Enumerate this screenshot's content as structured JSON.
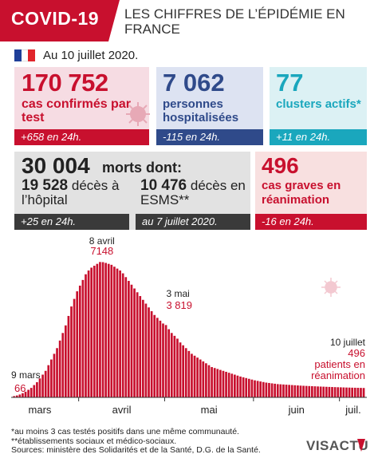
{
  "header": {
    "badge": "COVID-19",
    "title": "LES CHIFFRES DE L’ÉPIDÉMIE EN FRANCE"
  },
  "date_line": "Au 10 juillet 2020.",
  "colors": {
    "red": "#c8102e",
    "navy": "#2f4a8a",
    "teal": "#1aa7bd",
    "dark": "#3a3a3a",
    "flag_blue": "#1f3f99",
    "flag_red": "#e1252b"
  },
  "cards": {
    "confirmed": {
      "value": "170 752",
      "label": "cas confirmés par test",
      "delta": "+658 en 24h."
    },
    "hospitalized": {
      "value": "7 062",
      "label": "personnes hospitalisées",
      "delta": "-115 en 24h."
    },
    "clusters": {
      "value": "77",
      "label": "clusters actifs*",
      "delta": "+11 en 24h."
    },
    "deaths": {
      "value": "30 004",
      "label": "morts dont:",
      "hospital_value": "19 528",
      "hospital_label": "décès à l’hôpital",
      "hospital_delta": "+25 en 24h.",
      "esms_value": "10 476",
      "esms_label": "décès en ESMS**",
      "esms_delta": "au 7 juillet 2020."
    },
    "severe": {
      "value": "496",
      "label": "cas graves en réanimation",
      "delta": "-16 en 24h."
    }
  },
  "chart_data": {
    "type": "bar",
    "title": "",
    "xlabel": "",
    "ylabel": "",
    "x_tick_labels": [
      "mars",
      "avril",
      "mai",
      "juin",
      "juil."
    ],
    "ylim": [
      0,
      7500
    ],
    "bar_color": "#c8102e",
    "start_date": "2020-03-09",
    "annotations": [
      {
        "date": "9 mars",
        "value": "66"
      },
      {
        "date": "8 avril",
        "value": "7148"
      },
      {
        "date": "3 mai",
        "value": "3 819"
      },
      {
        "date": "10 juillet",
        "value": "496",
        "text": "patients en réanimation"
      }
    ],
    "values": [
      66,
      100,
      150,
      220,
      300,
      400,
      500,
      650,
      800,
      1000,
      1200,
      1400,
      1700,
      2000,
      2300,
      2600,
      3000,
      3400,
      3800,
      4300,
      4800,
      5200,
      5600,
      5900,
      6200,
      6500,
      6700,
      6850,
      6950,
      7050,
      7148,
      7140,
      7100,
      7050,
      7000,
      6900,
      6800,
      6700,
      6550,
      6350,
      6150,
      5950,
      5750,
      5550,
      5350,
      5150,
      4950,
      4750,
      4550,
      4350,
      4200,
      4050,
      3900,
      3819,
      3600,
      3400,
      3250,
      3100,
      2900,
      2750,
      2600,
      2450,
      2300,
      2200,
      2100,
      2000,
      1900,
      1800,
      1700,
      1600,
      1550,
      1500,
      1450,
      1400,
      1350,
      1300,
      1250,
      1200,
      1150,
      1100,
      1060,
      1020,
      980,
      940,
      900,
      870,
      840,
      810,
      780,
      760,
      740,
      720,
      700,
      690,
      680,
      670,
      660,
      650,
      640,
      630,
      620,
      612,
      605,
      598,
      591,
      584,
      577,
      570,
      564,
      558,
      552,
      546,
      540,
      535,
      530,
      525,
      520,
      516,
      512,
      508,
      504,
      500,
      496
    ]
  },
  "footnotes": [
    "*au moins 3 cas testés positifs dans une même communauté.",
    "**établissements sociaux et médico-sociaux.",
    "Sources: ministère des Solidarités et de la Santé, D.G. de la Santé."
  ],
  "logo": "VISACTU"
}
